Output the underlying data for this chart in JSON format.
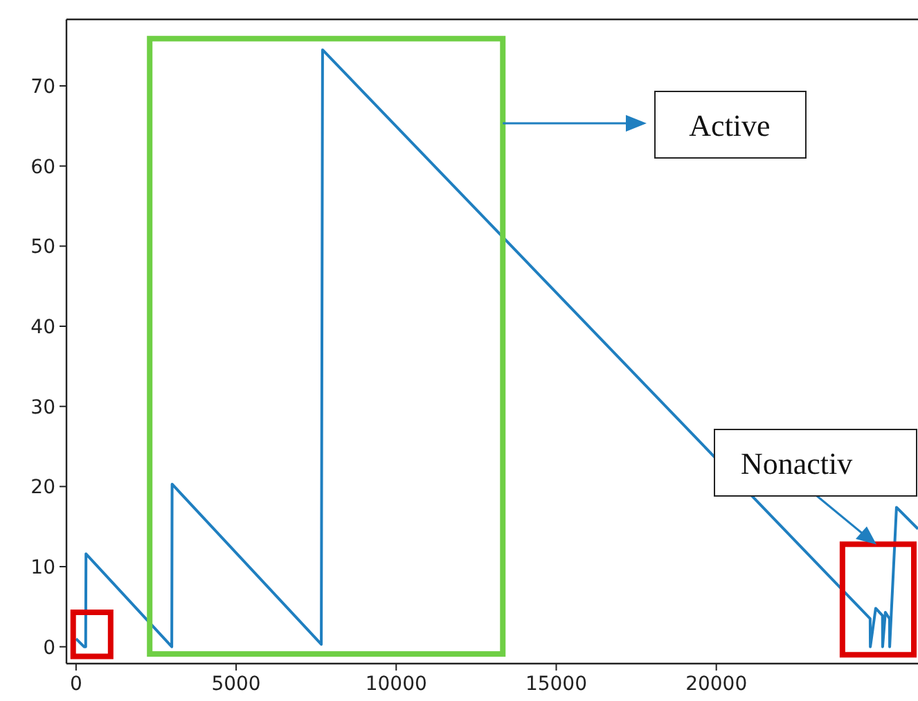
{
  "chart_data": {
    "type": "line",
    "color": "#1f7fc0",
    "x": [
      0,
      250,
      300,
      310,
      2990,
      3000,
      7660,
      7700,
      24805,
      24810,
      24978,
      25190,
      25195,
      25281,
      25411,
      25415,
      25628,
      26300
    ],
    "values": [
      1,
      0,
      0,
      11.6,
      0,
      20.3,
      0.3,
      74.5,
      3.5,
      0,
      4.8,
      3.9,
      0,
      4.3,
      3.5,
      0,
      17.4,
      14.7
    ],
    "xlim": [
      -300,
      26300
    ],
    "ylim": [
      -2.1,
      78.3
    ],
    "xticks": [
      0,
      5000,
      10000,
      15000,
      20000
    ],
    "yticks": [
      0,
      10,
      20,
      30,
      40,
      50,
      60,
      70
    ],
    "grid": false,
    "annotations": [
      "Active",
      "Nonactiv"
    ]
  }
}
